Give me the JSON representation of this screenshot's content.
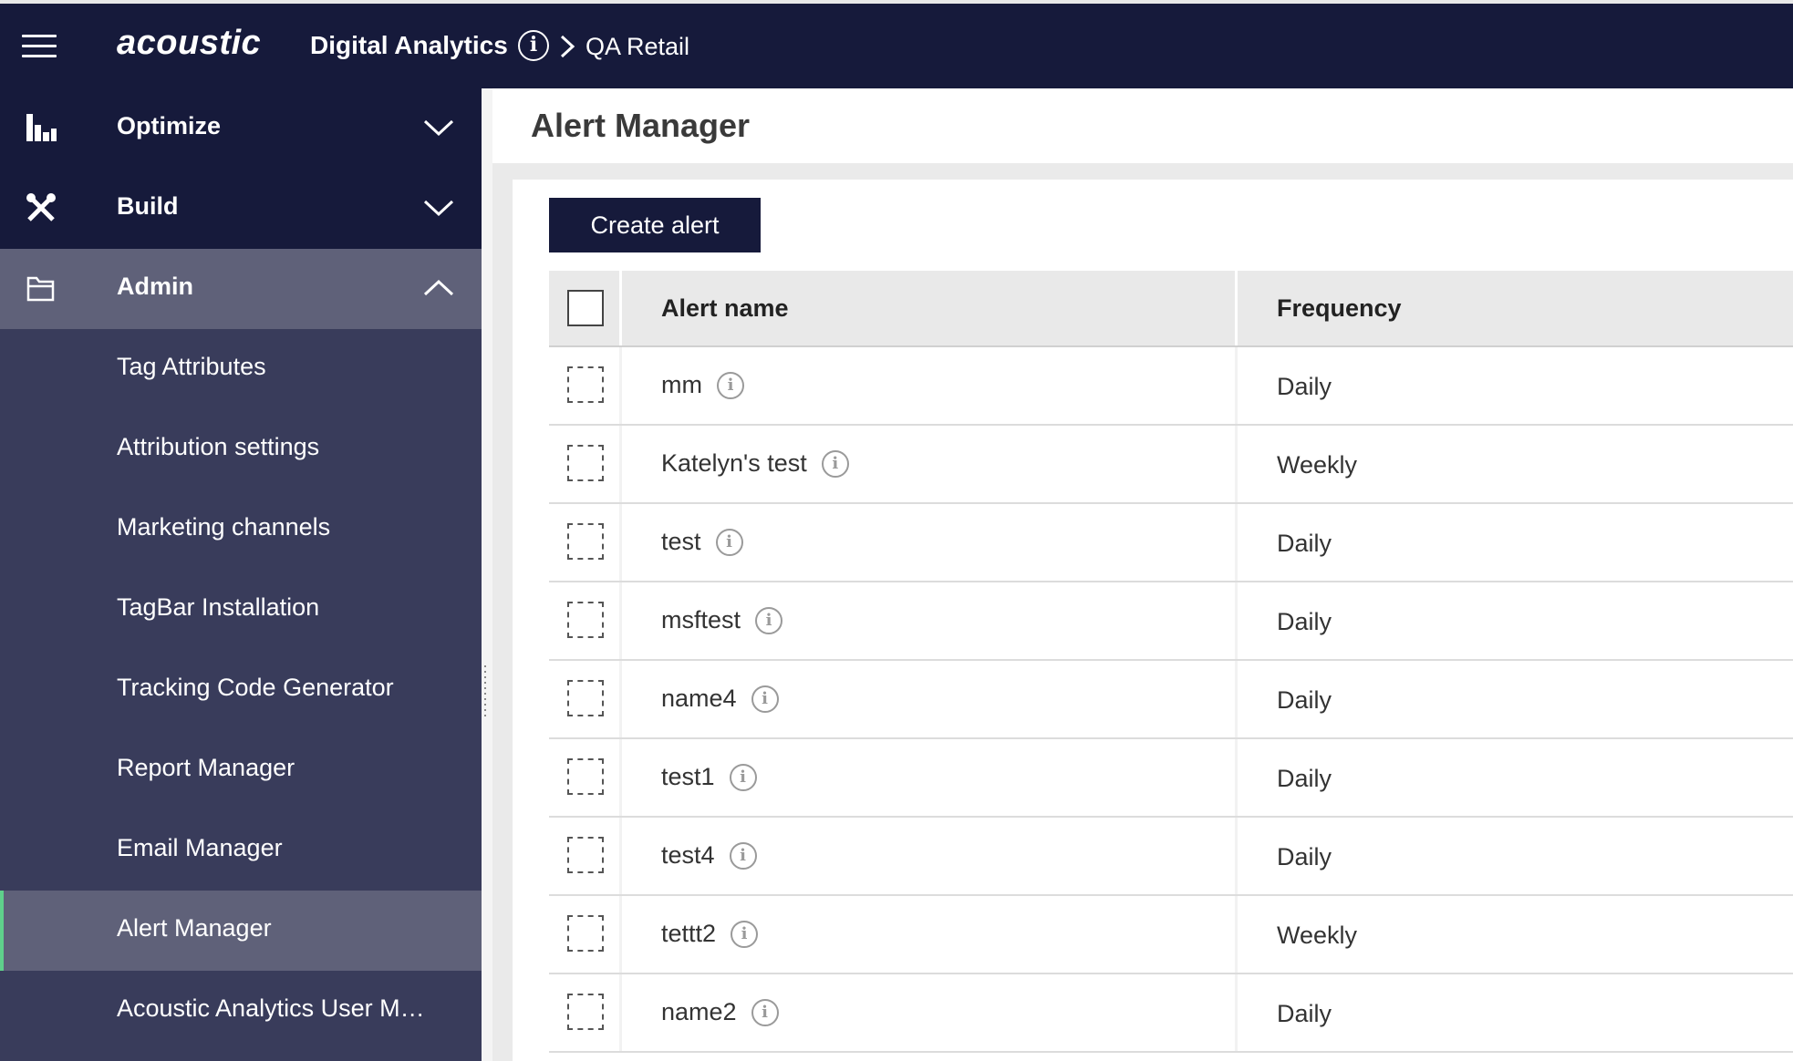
{
  "topbar": {
    "logo": "acoustic",
    "product": "Digital Analytics",
    "breadcrumb": "QA Retail",
    "info_glyph": "i",
    "icons": [
      "hamburger-icon",
      "info-icon",
      "chevron-right-icon"
    ]
  },
  "sidebar": {
    "sections": [
      {
        "label": "Optimize",
        "icon": "bar-chart-icon",
        "expanded": false
      },
      {
        "label": "Build",
        "icon": "tools-icon",
        "expanded": false
      },
      {
        "label": "Admin",
        "icon": "folder-icon",
        "expanded": true
      }
    ],
    "admin_items": [
      {
        "label": "Tag Attributes",
        "active": false
      },
      {
        "label": "Attribution settings",
        "active": false
      },
      {
        "label": "Marketing channels",
        "active": false
      },
      {
        "label": "TagBar Installation",
        "active": false
      },
      {
        "label": "Tracking Code Generator",
        "active": false
      },
      {
        "label": "Report Manager",
        "active": false
      },
      {
        "label": "Email Manager",
        "active": false
      },
      {
        "label": "Alert Manager",
        "active": true
      },
      {
        "label": "Acoustic Analytics User M…",
        "active": false
      }
    ]
  },
  "main": {
    "title": "Alert Manager",
    "create_button": "Create alert",
    "table": {
      "headers": {
        "name": "Alert name",
        "frequency": "Frequency"
      },
      "rows": [
        {
          "name": "mm",
          "frequency": "Daily"
        },
        {
          "name": "Katelyn's test",
          "frequency": "Weekly"
        },
        {
          "name": "test",
          "frequency": "Daily"
        },
        {
          "name": "msftest",
          "frequency": "Daily"
        },
        {
          "name": "name4",
          "frequency": "Daily"
        },
        {
          "name": "test1",
          "frequency": "Daily"
        },
        {
          "name": "test4",
          "frequency": "Daily"
        },
        {
          "name": "tettt2",
          "frequency": "Weekly"
        },
        {
          "name": "name2",
          "frequency": "Daily"
        }
      ]
    }
  },
  "colors": {
    "navy": "#161a3b",
    "sidebar": "#393c5b",
    "active": "#5f6179",
    "accent": "#5fd08b"
  }
}
